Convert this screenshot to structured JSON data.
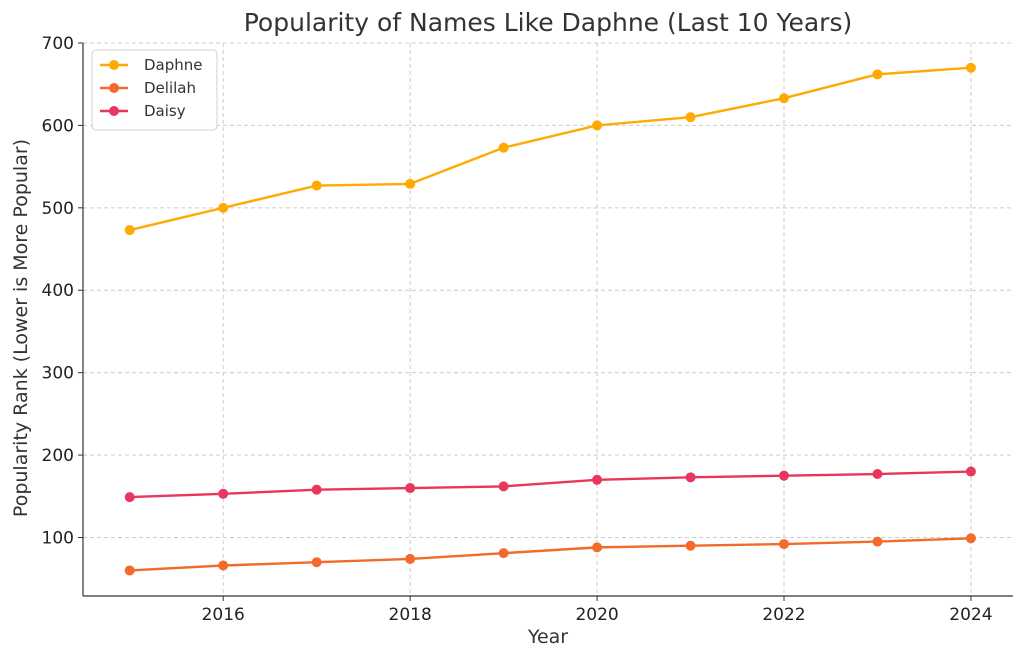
{
  "chart_data": {
    "type": "line",
    "title": "Popularity of Names Like Daphne (Last 10 Years)",
    "xlabel": "Year",
    "ylabel": "Popularity Rank (Lower is More Popular)",
    "x": [
      2015,
      2016,
      2017,
      2018,
      2019,
      2020,
      2021,
      2022,
      2023,
      2024
    ],
    "x_ticks": [
      2016,
      2018,
      2020,
      2022,
      2024
    ],
    "y_ticks": [
      100,
      200,
      300,
      400,
      500,
      600,
      700
    ],
    "xlim": [
      2014.5,
      2024.45
    ],
    "ylim": [
      29,
      700
    ],
    "grid": true,
    "legend_position": "top-left",
    "series": [
      {
        "name": "Daphne",
        "color": "#FFAA00",
        "values": [
          473,
          500,
          527,
          529,
          573,
          600,
          610,
          633,
          662,
          670
        ]
      },
      {
        "name": "Delilah",
        "color": "#F26B2A",
        "values": [
          60,
          66,
          70,
          74,
          81,
          88,
          90,
          92,
          95,
          99
        ]
      },
      {
        "name": "Daisy",
        "color": "#E8365D",
        "values": [
          149,
          153,
          158,
          160,
          162,
          170,
          173,
          175,
          177,
          180
        ]
      }
    ]
  }
}
